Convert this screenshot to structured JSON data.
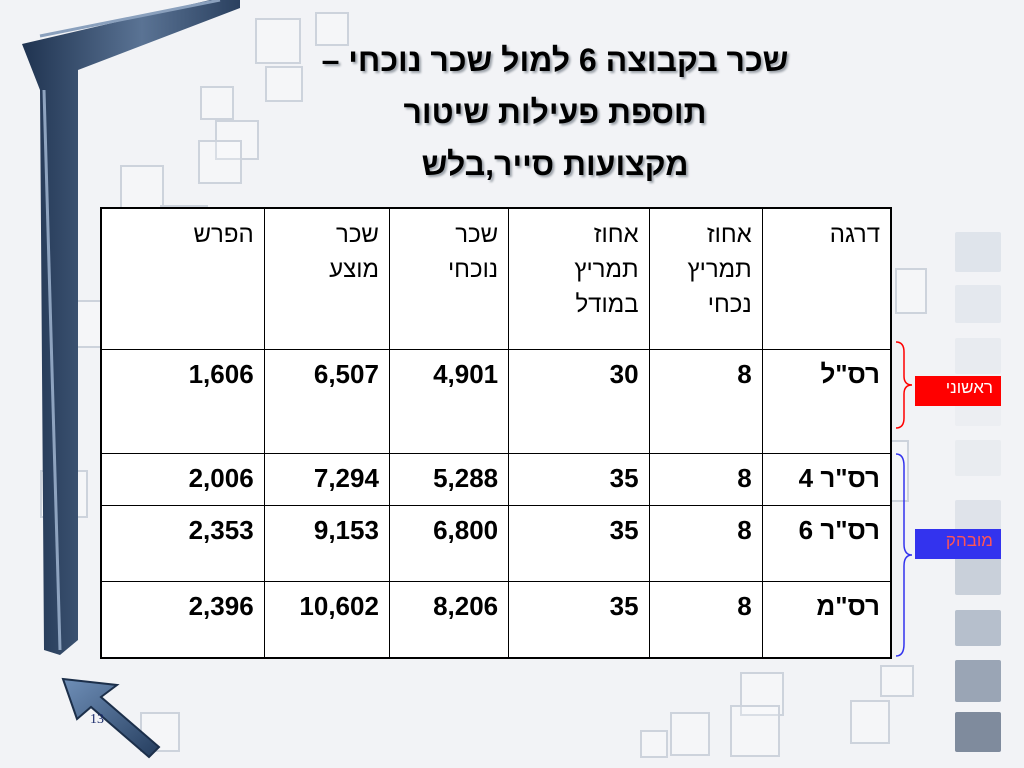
{
  "slide": {
    "title_lines": [
      "שכר בקבוצה 6 למול שכר נוכחי –",
      "תוספת פעילות שיטור",
      "מקצועות סייר,בלש"
    ],
    "page_number": "13"
  },
  "table": {
    "headers": [
      [
        "דרגה"
      ],
      [
        "אחוז",
        "תמריץ",
        "נכחי"
      ],
      [
        "אחוז",
        "תמריץ",
        "במודל"
      ],
      [
        "שכר",
        "נוכחי"
      ],
      [
        "שכר",
        "מוצע"
      ],
      [
        "הפרש"
      ]
    ],
    "rows": [
      [
        "רס\"ל",
        "8",
        "30",
        "4,901",
        "6,507",
        "1,606"
      ],
      [
        "רס\"ר 4",
        "8",
        "35",
        "5,288",
        "7,294",
        "2,006"
      ],
      [
        "רס\"ר 6",
        "8",
        "35",
        "6,800",
        "9,153",
        "2,353"
      ],
      [
        "רס\"מ",
        "8",
        "35",
        "8,206",
        "10,602",
        "2,396"
      ]
    ]
  },
  "groups": {
    "first_label": "ראשוני",
    "expert_label": "מובהק",
    "colors": {
      "first": "#ff0000",
      "expert": "#3333ee",
      "expert_text": "#ff5555"
    }
  }
}
